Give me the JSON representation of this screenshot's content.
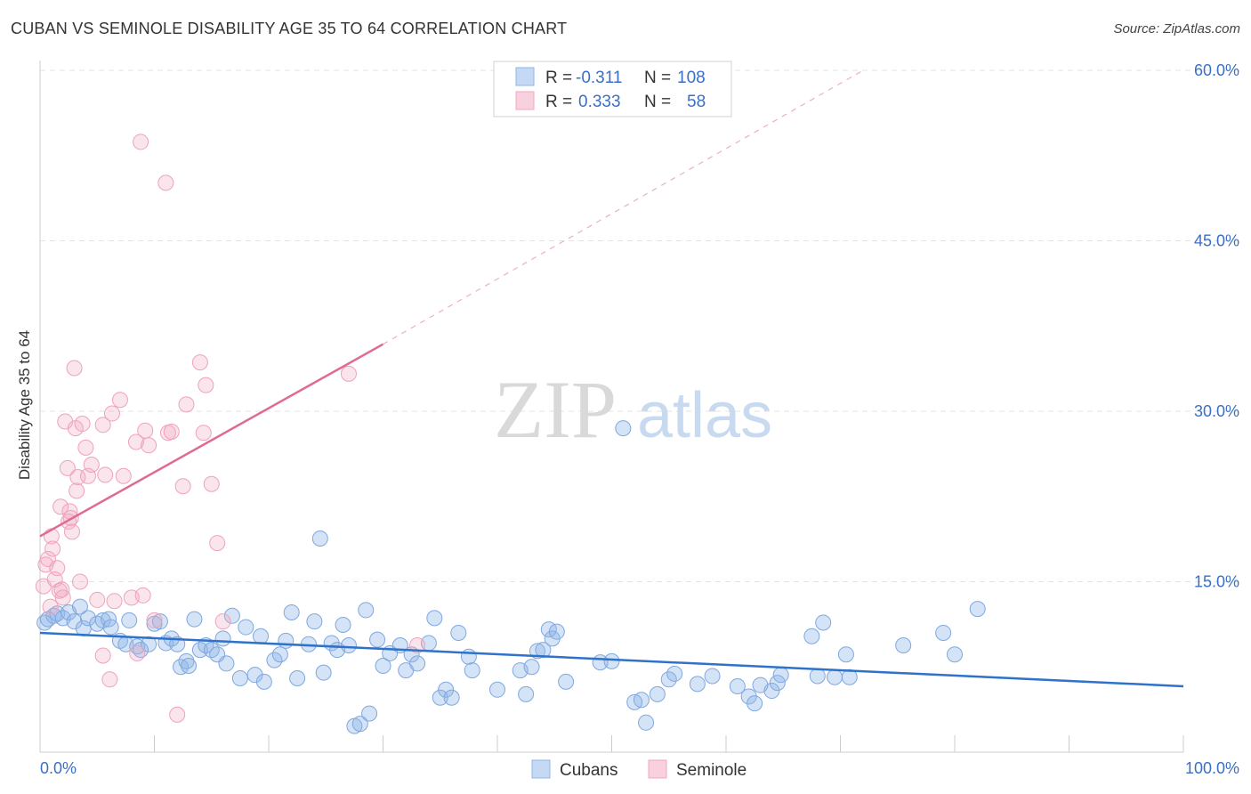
{
  "title": "CUBAN VS SEMINOLE DISABILITY AGE 35 TO 64 CORRELATION CHART",
  "source": "Source: ZipAtlas.com",
  "colors": {
    "blue": "#8fb5e8",
    "blue_line": "#2f72c9",
    "pink": "#f1a8c0",
    "pink_line": "#e06a95",
    "tick_text": "#3a6fc8"
  },
  "legend_box": {
    "rows": [
      {
        "r_label": "R =",
        "r_value": "-0.311",
        "n_label": "N =",
        "n_value": "108",
        "color": "#8fb5e8"
      },
      {
        "r_label": "R =",
        "r_value": "0.333",
        "n_label": "N =",
        "n_value": "58",
        "color": "#f1a8c0"
      }
    ]
  },
  "watermark": {
    "zip": "ZIP",
    "atlas": "atlas"
  },
  "chart_data": {
    "type": "scatter",
    "title": "CUBAN VS SEMINOLE DISABILITY AGE 35 TO 64 CORRELATION CHART",
    "xlabel": "",
    "ylabel": "Disability Age 35 to 64",
    "xlim": [
      0,
      100
    ],
    "ylim": [
      0,
      60
    ],
    "x_tick_labels": [
      "0.0%",
      "100.0%"
    ],
    "y_ticks": [
      15,
      30,
      45,
      60
    ],
    "y_tick_labels": [
      "15.0%",
      "30.0%",
      "45.0%",
      "60.0%"
    ],
    "grid": true,
    "legend": "bottom-center",
    "series": [
      {
        "name": "Cubans",
        "color": "#8fb5e8",
        "trend": {
          "x": [
            0,
            100
          ],
          "y": [
            10.5,
            5.8
          ]
        },
        "points": [
          [
            0.4,
            11.4
          ],
          [
            0.7,
            11.7
          ],
          [
            1.2,
            12.0
          ],
          [
            1.5,
            12.2
          ],
          [
            2.0,
            11.8
          ],
          [
            2.5,
            12.3
          ],
          [
            3.0,
            11.5
          ],
          [
            3.5,
            12.8
          ],
          [
            3.8,
            10.9
          ],
          [
            4.2,
            11.8
          ],
          [
            5.0,
            11.3
          ],
          [
            5.5,
            11.6
          ],
          [
            6.0,
            11.7
          ],
          [
            6.2,
            11.0
          ],
          [
            7.0,
            9.8
          ],
          [
            7.5,
            9.5
          ],
          [
            7.8,
            11.6
          ],
          [
            8.5,
            9.3
          ],
          [
            8.8,
            9.0
          ],
          [
            9.5,
            9.5
          ],
          [
            10.0,
            11.3
          ],
          [
            10.5,
            11.5
          ],
          [
            11.0,
            9.6
          ],
          [
            11.5,
            10.0
          ],
          [
            12.0,
            9.5
          ],
          [
            12.3,
            7.5
          ],
          [
            12.8,
            8.0
          ],
          [
            13.0,
            7.6
          ],
          [
            13.5,
            11.7
          ],
          [
            14.0,
            9.0
          ],
          [
            14.5,
            9.4
          ],
          [
            15.0,
            9.0
          ],
          [
            15.5,
            8.6
          ],
          [
            16.0,
            10.0
          ],
          [
            16.3,
            7.8
          ],
          [
            16.8,
            12.0
          ],
          [
            17.5,
            6.5
          ],
          [
            18.0,
            11.0
          ],
          [
            18.8,
            6.8
          ],
          [
            19.3,
            10.2
          ],
          [
            19.6,
            6.2
          ],
          [
            20.5,
            8.1
          ],
          [
            21.0,
            8.6
          ],
          [
            21.5,
            9.8
          ],
          [
            22.0,
            12.3
          ],
          [
            22.5,
            6.5
          ],
          [
            23.5,
            9.5
          ],
          [
            24.0,
            11.5
          ],
          [
            24.5,
            18.8
          ],
          [
            24.8,
            7.0
          ],
          [
            25.5,
            9.6
          ],
          [
            26.0,
            9.0
          ],
          [
            26.5,
            11.2
          ],
          [
            27.0,
            9.4
          ],
          [
            27.5,
            2.3
          ],
          [
            28.0,
            2.5
          ],
          [
            28.5,
            12.5
          ],
          [
            28.8,
            3.4
          ],
          [
            29.5,
            9.9
          ],
          [
            30.0,
            7.6
          ],
          [
            30.6,
            8.7
          ],
          [
            31.5,
            9.4
          ],
          [
            32.0,
            7.2
          ],
          [
            32.5,
            8.6
          ],
          [
            33.0,
            7.8
          ],
          [
            34.0,
            9.6
          ],
          [
            34.5,
            11.8
          ],
          [
            35.0,
            4.8
          ],
          [
            35.5,
            5.5
          ],
          [
            36.0,
            4.8
          ],
          [
            36.6,
            10.5
          ],
          [
            37.5,
            8.4
          ],
          [
            37.8,
            7.2
          ],
          [
            40.0,
            5.5
          ],
          [
            42.0,
            7.2
          ],
          [
            42.5,
            5.1
          ],
          [
            43.0,
            7.5
          ],
          [
            43.5,
            8.9
          ],
          [
            44.0,
            9.0
          ],
          [
            44.5,
            10.8
          ],
          [
            44.8,
            10.0
          ],
          [
            45.2,
            10.6
          ],
          [
            46.0,
            6.2
          ],
          [
            49.0,
            7.9
          ],
          [
            50.0,
            8.0
          ],
          [
            51.0,
            28.5
          ],
          [
            52.0,
            4.4
          ],
          [
            52.6,
            4.6
          ],
          [
            53.0,
            2.6
          ],
          [
            54.0,
            5.1
          ],
          [
            55.0,
            6.4
          ],
          [
            55.5,
            6.9
          ],
          [
            57.5,
            6.0
          ],
          [
            58.8,
            6.7
          ],
          [
            61.0,
            5.8
          ],
          [
            62.0,
            4.9
          ],
          [
            62.5,
            4.3
          ],
          [
            63.0,
            5.9
          ],
          [
            64.0,
            5.4
          ],
          [
            64.5,
            6.1
          ],
          [
            64.8,
            6.8
          ],
          [
            67.5,
            10.2
          ],
          [
            68.0,
            6.7
          ],
          [
            68.5,
            11.4
          ],
          [
            69.5,
            6.6
          ],
          [
            70.5,
            8.6
          ],
          [
            70.8,
            6.6
          ],
          [
            75.5,
            9.4
          ],
          [
            79.0,
            10.5
          ],
          [
            80.0,
            8.6
          ],
          [
            82.0,
            12.6
          ]
        ]
      },
      {
        "name": "Seminole",
        "color": "#f1a8c0",
        "trend": {
          "x": [
            0,
            30
          ],
          "y": [
            19.0,
            35.9
          ]
        },
        "trend_dashed": {
          "x": [
            30,
            72
          ],
          "y": [
            35.9,
            60.0
          ]
        },
        "points": [
          [
            0.3,
            14.6
          ],
          [
            0.5,
            16.5
          ],
          [
            0.7,
            17.0
          ],
          [
            0.9,
            12.8
          ],
          [
            1.0,
            19.0
          ],
          [
            1.1,
            17.9
          ],
          [
            1.3,
            15.2
          ],
          [
            1.5,
            16.2
          ],
          [
            1.7,
            14.2
          ],
          [
            1.8,
            21.6
          ],
          [
            1.9,
            14.3
          ],
          [
            2.0,
            13.6
          ],
          [
            2.2,
            29.1
          ],
          [
            2.4,
            25.0
          ],
          [
            2.5,
            20.3
          ],
          [
            2.6,
            21.2
          ],
          [
            2.7,
            20.6
          ],
          [
            2.8,
            19.4
          ],
          [
            3.0,
            33.8
          ],
          [
            3.1,
            28.5
          ],
          [
            3.2,
            23.0
          ],
          [
            3.3,
            24.2
          ],
          [
            3.5,
            15.0
          ],
          [
            3.7,
            28.9
          ],
          [
            4.0,
            26.8
          ],
          [
            4.2,
            24.3
          ],
          [
            4.5,
            25.3
          ],
          [
            5.0,
            13.4
          ],
          [
            5.5,
            8.5
          ],
          [
            5.5,
            28.8
          ],
          [
            5.7,
            24.4
          ],
          [
            6.1,
            6.4
          ],
          [
            6.3,
            29.8
          ],
          [
            6.5,
            13.3
          ],
          [
            7.0,
            31.0
          ],
          [
            7.3,
            24.3
          ],
          [
            8.0,
            13.6
          ],
          [
            8.4,
            27.3
          ],
          [
            8.5,
            8.7
          ],
          [
            8.8,
            53.7
          ],
          [
            9.0,
            13.8
          ],
          [
            9.2,
            28.3
          ],
          [
            9.5,
            27.0
          ],
          [
            10.0,
            11.6
          ],
          [
            11.0,
            50.1
          ],
          [
            11.2,
            28.1
          ],
          [
            11.5,
            28.2
          ],
          [
            12.0,
            3.3
          ],
          [
            12.5,
            23.4
          ],
          [
            12.8,
            30.6
          ],
          [
            14.0,
            34.3
          ],
          [
            14.3,
            28.1
          ],
          [
            14.5,
            32.3
          ],
          [
            15.0,
            23.6
          ],
          [
            15.5,
            18.4
          ],
          [
            16.0,
            11.5
          ],
          [
            27.0,
            33.3
          ],
          [
            33.0,
            9.4
          ]
        ]
      }
    ]
  },
  "bottom_legend": [
    {
      "label": "Cubans",
      "color": "#8fb5e8"
    },
    {
      "label": "Seminole",
      "color": "#f1a8c0"
    }
  ]
}
